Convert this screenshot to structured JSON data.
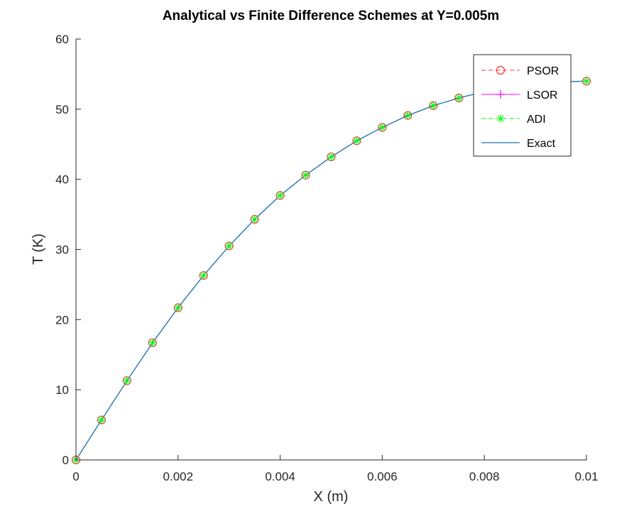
{
  "chart_data": {
    "type": "line",
    "title": "Analytical vs Finite Difference Schemes at Y=0.005m",
    "xlabel": "X (m)",
    "ylabel": "T (K)",
    "xlim": [
      0,
      0.01
    ],
    "ylim": [
      0,
      60
    ],
    "x_ticks": [
      "0",
      "0.002",
      "0.004",
      "0.006",
      "0.008",
      "0.01"
    ],
    "y_ticks": [
      "0",
      "10",
      "20",
      "30",
      "40",
      "50",
      "60"
    ],
    "x_tick_values": [
      0,
      0.002,
      0.004,
      0.006,
      0.008,
      0.01
    ],
    "y_tick_values": [
      0,
      10,
      20,
      30,
      40,
      50,
      60
    ],
    "grid": false,
    "legend_position": "top-right",
    "x": [
      0,
      0.0005,
      0.001,
      0.0015,
      0.002,
      0.0025,
      0.003,
      0.0035,
      0.004,
      0.0045,
      0.005,
      0.0055,
      0.006,
      0.0065,
      0.007,
      0.0075,
      0.008,
      0.0085,
      0.009,
      0.0095,
      0.01
    ],
    "series": [
      {
        "name": "PSOR",
        "style": "dashed-circle",
        "color": "#ff3333",
        "values": [
          0,
          5.7,
          11.3,
          16.7,
          21.7,
          26.3,
          30.5,
          34.3,
          37.7,
          40.6,
          43.2,
          45.5,
          47.4,
          49.1,
          50.5,
          51.6,
          52.5,
          53.1,
          53.6,
          53.9,
          54.0
        ]
      },
      {
        "name": "LSOR",
        "style": "solid-plus",
        "color": "#ff00ff",
        "values": [
          0,
          5.7,
          11.3,
          16.7,
          21.7,
          26.3,
          30.5,
          34.3,
          37.7,
          40.6,
          43.2,
          45.5,
          47.4,
          49.1,
          50.5,
          51.6,
          52.5,
          53.1,
          53.6,
          53.9,
          54.0
        ]
      },
      {
        "name": "ADI",
        "style": "dashed-star",
        "color": "#00ff00",
        "values": [
          0,
          5.7,
          11.3,
          16.7,
          21.7,
          26.3,
          30.5,
          34.3,
          37.7,
          40.6,
          43.2,
          45.5,
          47.4,
          49.1,
          50.5,
          51.6,
          52.5,
          53.1,
          53.6,
          53.9,
          54.0
        ]
      },
      {
        "name": "Exact",
        "style": "solid",
        "color": "#1f77b4",
        "values": [
          0,
          5.7,
          11.3,
          16.7,
          21.7,
          26.3,
          30.5,
          34.3,
          37.7,
          40.6,
          43.2,
          45.5,
          47.4,
          49.1,
          50.5,
          51.6,
          52.5,
          53.1,
          53.6,
          53.9,
          54.0
        ]
      }
    ]
  }
}
